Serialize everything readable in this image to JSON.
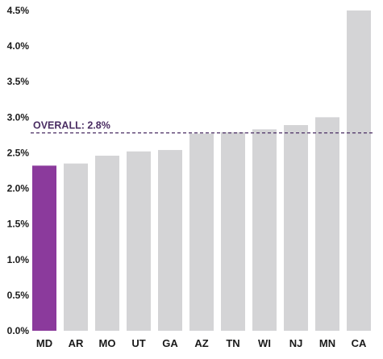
{
  "chart_data": {
    "type": "bar",
    "categories": [
      "MD",
      "AR",
      "MO",
      "UT",
      "GA",
      "AZ",
      "TN",
      "WI",
      "NJ",
      "MN",
      "CA"
    ],
    "values": [
      2.32,
      2.35,
      2.46,
      2.52,
      2.54,
      2.77,
      2.79,
      2.83,
      2.89,
      3.0,
      4.5
    ],
    "ylim": [
      0,
      4.5
    ],
    "yticks": [
      0,
      0.5,
      1.0,
      1.5,
      2.0,
      2.5,
      3.0,
      3.5,
      4.0,
      4.5
    ],
    "ytick_labels": [
      "0.0%",
      "0.5%",
      "1.0%",
      "1.5%",
      "2.0%",
      "2.5%",
      "3.0%",
      "3.5%",
      "4.0%",
      "4.5%"
    ],
    "reference_line": {
      "value": 2.78,
      "label": "OVERALL: 2.8%"
    },
    "highlight_category": "MD",
    "colors": {
      "highlight": "#8b3a9c",
      "bar": "#d4d4d6",
      "reference": "#4a2d63"
    },
    "grid": false,
    "legend": "none"
  }
}
